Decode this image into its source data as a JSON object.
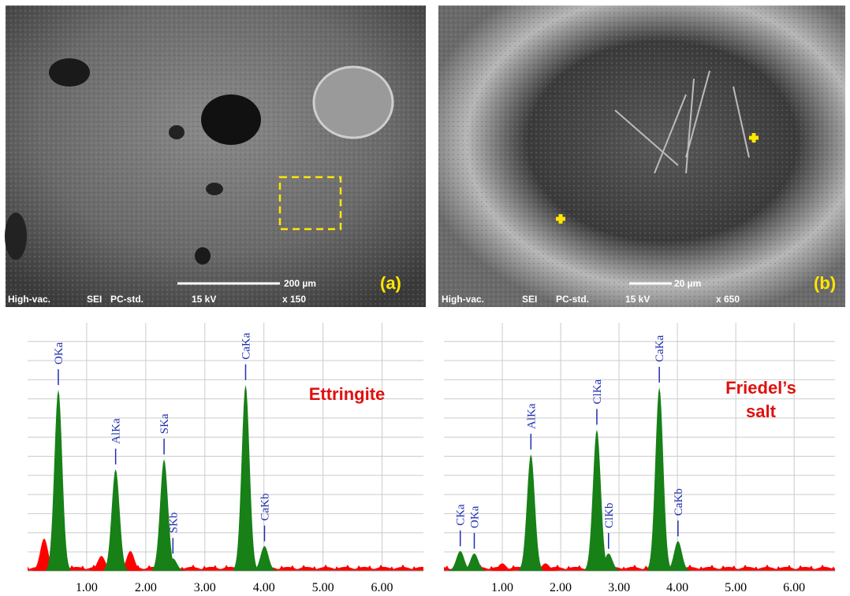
{
  "images": [
    {
      "scale_bar": "200 µm",
      "label": "(a)",
      "info": [
        "High-vac.",
        "SEI",
        "PC-std.",
        "15 kV",
        "x 150"
      ]
    },
    {
      "scale_bar": "20 µm",
      "label": "(b)",
      "info": [
        "High-vac.",
        "SEI",
        "PC-std.",
        "15 kV",
        "x 650"
      ]
    }
  ],
  "chart_data": [
    {
      "type": "spectrum",
      "annotation": "Ettringite",
      "peak_color": "#178017",
      "noise_color": "#ff0000",
      "label_color": "#1f2fb0",
      "xlim": [
        0,
        6.7
      ],
      "ylim": [
        0,
        100
      ],
      "xticks": [
        {
          "value": 1,
          "label": "1.00"
        },
        {
          "value": 2,
          "label": "2.00"
        },
        {
          "value": 3,
          "label": "3.00"
        },
        {
          "value": 4,
          "label": "4.00"
        },
        {
          "value": 5,
          "label": "5.00"
        },
        {
          "value": 6,
          "label": "6.00"
        }
      ],
      "peaks": [
        {
          "name": "OKa",
          "x": 0.52,
          "height": 73
        },
        {
          "name": "AlKa",
          "x": 1.49,
          "height": 41
        },
        {
          "name": "SKa",
          "x": 2.31,
          "height": 45
        },
        {
          "name": "SKb",
          "x": 2.46,
          "height": 5
        },
        {
          "name": "CaKa",
          "x": 3.69,
          "height": 75
        },
        {
          "name": "CaKb",
          "x": 4.01,
          "height": 10
        }
      ],
      "other_peaks": [
        {
          "x": 0.28,
          "height": 13
        },
        {
          "x": 1.74,
          "height": 8
        },
        {
          "x": 1.25,
          "height": 6
        }
      ]
    },
    {
      "type": "spectrum",
      "annotation": "Friedel’s salt",
      "peak_color": "#178017",
      "noise_color": "#ff0000",
      "label_color": "#1f2fb0",
      "xlim": [
        0,
        6.7
      ],
      "ylim": [
        0,
        100
      ],
      "xticks": [
        {
          "value": 1,
          "label": "1.00"
        },
        {
          "value": 2,
          "label": "2.00"
        },
        {
          "value": 3,
          "label": "3.00"
        },
        {
          "value": 4,
          "label": "4.00"
        },
        {
          "value": 5,
          "label": "5.00"
        },
        {
          "value": 6,
          "label": "6.00"
        }
      ],
      "peaks": [
        {
          "name": "CKa",
          "x": 0.28,
          "height": 8
        },
        {
          "name": "OKa",
          "x": 0.52,
          "height": 7
        },
        {
          "name": "AlKa",
          "x": 1.49,
          "height": 47
        },
        {
          "name": "ClKa",
          "x": 2.62,
          "height": 57
        },
        {
          "name": "ClKb",
          "x": 2.82,
          "height": 7
        },
        {
          "name": "CaKa",
          "x": 3.69,
          "height": 74
        },
        {
          "name": "CaKb",
          "x": 4.01,
          "height": 12
        }
      ],
      "other_peaks": [
        {
          "x": 1.0,
          "height": 3
        },
        {
          "x": 1.74,
          "height": 3
        }
      ]
    }
  ]
}
